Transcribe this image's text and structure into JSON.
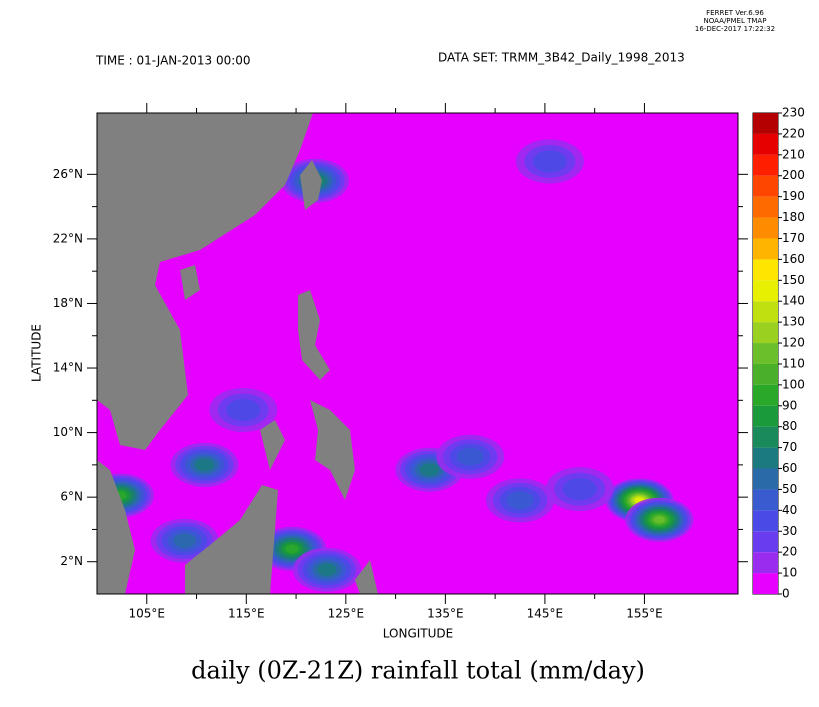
{
  "header": {
    "program": "FERRET Ver.6.96",
    "lab": "NOAA/PMEL TMAP",
    "date": "16-DEC-2017 17:22:32",
    "time": "TIME : 01-JAN-2013 00:00",
    "dataset": "DATA SET: TRMM_3B42_Daily_1998_2013"
  },
  "chart_data": {
    "type": "contour-map",
    "title": "daily (0Z-21Z) rainfall total (mm/day)",
    "x_label": "LONGITUDE",
    "y_label": "LATITUDE",
    "xlim": [
      100,
      164.4
    ],
    "ylim": [
      0,
      29.8
    ],
    "xticks": [
      {
        "value": 105,
        "label": "105°E"
      },
      {
        "value": 115,
        "label": "115°E"
      },
      {
        "value": 125,
        "label": "125°E"
      },
      {
        "value": 135,
        "label": "135°E"
      },
      {
        "value": 145,
        "label": "145°E"
      },
      {
        "value": 155,
        "label": "155°E"
      }
    ],
    "yticks": [
      {
        "value": 2,
        "label": "2°N"
      },
      {
        "value": 6,
        "label": "6°N"
      },
      {
        "value": 10,
        "label": "10°N"
      },
      {
        "value": 14,
        "label": "14°N"
      },
      {
        "value": 18,
        "label": "18°N"
      },
      {
        "value": 22,
        "label": "22°N"
      },
      {
        "value": 26,
        "label": "26°N"
      }
    ],
    "levels": [
      0,
      10,
      20,
      30,
      40,
      50,
      60,
      70,
      80,
      90,
      100,
      110,
      120,
      130,
      140,
      150,
      160,
      170,
      180,
      190,
      200,
      210,
      220,
      230
    ],
    "colors": [
      "#e600ff",
      "#9a2cf0",
      "#6a3cf0",
      "#4a4ae6",
      "#3a5ad0",
      "#2a6aa8",
      "#1a7a80",
      "#1a8a5a",
      "#1a9a3a",
      "#2aa82a",
      "#4ab02a",
      "#6abf2a",
      "#9ad020",
      "#c0e010",
      "#e6f000",
      "#ffe600",
      "#ffb400",
      "#ff8c00",
      "#ff6a00",
      "#ff4600",
      "#ff1e00",
      "#e60000",
      "#b40000"
    ],
    "land_color": "#808080",
    "cells": {
      "lon": [
        102.3,
        110.8,
        108.8,
        119.6,
        121.9,
        133.4,
        145.5,
        154.5,
        156.5,
        142.5,
        114.7,
        123.1,
        137.5,
        148.5
      ],
      "lat": [
        6.1,
        8.0,
        3.3,
        2.8,
        25.6,
        7.7,
        26.8,
        5.8,
        4.6,
        5.8,
        11.4,
        1.5,
        8.5,
        6.5
      ],
      "values": [
        90,
        60,
        50,
        90,
        70,
        60,
        30,
        140,
        110,
        40,
        30,
        60,
        40,
        30
      ]
    }
  }
}
